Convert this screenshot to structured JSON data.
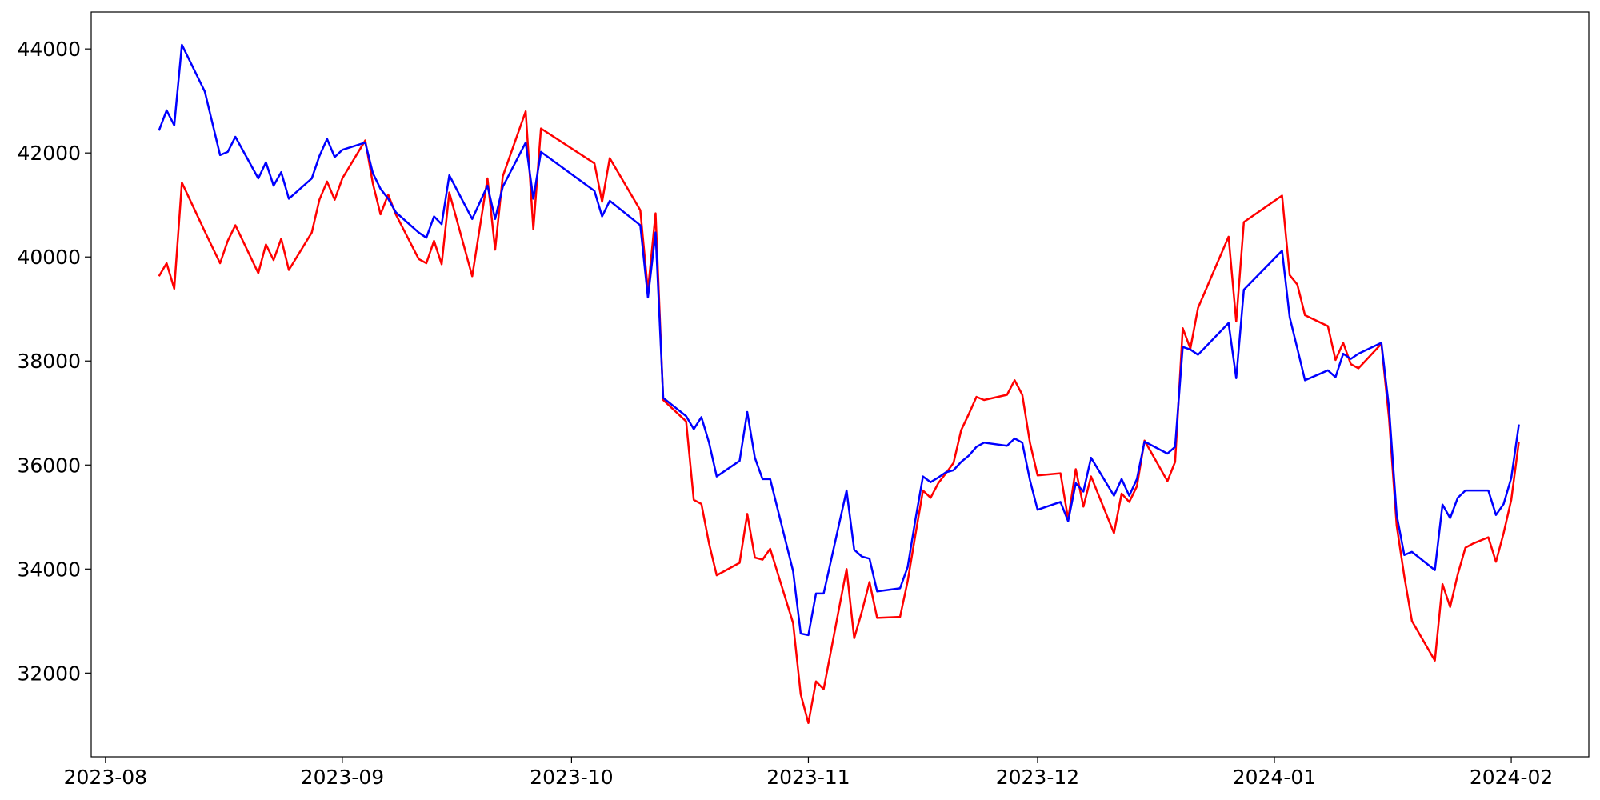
{
  "chart_data": {
    "type": "line",
    "x": [
      19577,
      19578,
      19579,
      19580,
      19583,
      19585,
      19586,
      19587,
      19590,
      19591,
      19592,
      19593,
      19594,
      19597,
      19598,
      19599,
      19600,
      19601,
      19604,
      19605,
      19606,
      19607,
      19608,
      19611,
      19612,
      19613,
      19614,
      19615,
      19618,
      19620,
      19621,
      19622,
      19625,
      19626,
      19627,
      19634,
      19635,
      19636,
      19640,
      19641,
      19642,
      19643,
      19646,
      19647,
      19648,
      19649,
      19650,
      19653,
      19654,
      19655,
      19656,
      19657,
      19660,
      19661,
      19662,
      19663,
      19664,
      19667,
      19668,
      19669,
      19670,
      19671,
      19674,
      19675,
      19676,
      19677,
      19678,
      19679,
      19680,
      19681,
      19682,
      19683,
      19684,
      19685,
      19688,
      19689,
      19690,
      19691,
      19692,
      19695,
      19696,
      19697,
      19698,
      19699,
      19702,
      19703,
      19704,
      19705,
      19706,
      19709,
      19710,
      19711,
      19712,
      19713,
      19717,
      19718,
      19719,
      19724,
      19725,
      19726,
      19727,
      19730,
      19731,
      19732,
      19733,
      19734,
      19737,
      19738,
      19739,
      19740,
      19741,
      19744,
      19745,
      19746,
      19747,
      19748,
      19749,
      19751,
      19752,
      19753,
      19754,
      19755
    ],
    "series": [
      {
        "color": "#ff0000",
        "values": [
          39630,
          39880,
          39390,
          41430,
          40490,
          39880,
          40310,
          40610,
          39690,
          40240,
          39940,
          40350,
          39750,
          40470,
          41100,
          41450,
          41100,
          41510,
          42240,
          41410,
          40820,
          41200,
          40820,
          39960,
          39880,
          40310,
          39860,
          41240,
          39630,
          41510,
          40140,
          41550,
          42800,
          40530,
          42470,
          41800,
          41060,
          41900,
          40900,
          39350,
          40840,
          37250,
          36840,
          35330,
          35250,
          34490,
          33880,
          34120,
          35060,
          34220,
          34180,
          34390,
          32960,
          31590,
          31040,
          31840,
          31690,
          34000,
          32670,
          33180,
          33750,
          33060,
          33080,
          33770,
          34650,
          35510,
          35370,
          35650,
          35840,
          36040,
          36670,
          36980,
          37310,
          37250,
          37350,
          37630,
          37350,
          36430,
          35800,
          35840,
          34960,
          35920,
          35200,
          35780,
          34690,
          35450,
          35290,
          35590,
          36470,
          35690,
          36060,
          38630,
          38240,
          39020,
          40390,
          38760,
          40670,
          41180,
          39650,
          39470,
          38880,
          38670,
          38020,
          38350,
          37940,
          37860,
          38330,
          36900,
          34840,
          33860,
          33000,
          32240,
          33710,
          33270,
          33900,
          34410,
          34490,
          34610,
          34140,
          34690,
          35330,
          36450
        ]
      },
      {
        "color": "#0000ff",
        "values": [
          42430,
          42820,
          42530,
          44080,
          43180,
          41960,
          42020,
          42310,
          41510,
          41820,
          41370,
          41630,
          41120,
          41510,
          41940,
          42270,
          41920,
          42060,
          42200,
          41610,
          41310,
          41120,
          40860,
          40470,
          40370,
          40780,
          40630,
          41570,
          40730,
          41370,
          40730,
          41350,
          42200,
          41120,
          42020,
          41270,
          40780,
          41080,
          40610,
          39220,
          40470,
          37290,
          36940,
          36690,
          36920,
          36430,
          35780,
          36080,
          37020,
          36140,
          35730,
          35730,
          33960,
          32760,
          32730,
          33530,
          33530,
          35510,
          34370,
          34240,
          34200,
          33570,
          33630,
          34040,
          34940,
          35780,
          35670,
          35760,
          35860,
          35900,
          36060,
          36180,
          36350,
          36430,
          36370,
          36510,
          36430,
          35710,
          35140,
          35290,
          34920,
          35650,
          35490,
          36140,
          35410,
          35730,
          35410,
          35730,
          36450,
          36220,
          36350,
          38270,
          38220,
          38120,
          38730,
          37670,
          39370,
          40120,
          38840,
          38240,
          37630,
          37820,
          37690,
          38140,
          38040,
          38140,
          38350,
          37100,
          35040,
          34270,
          34330,
          33980,
          35240,
          34980,
          35370,
          35510,
          35510,
          35510,
          35040,
          35250,
          35750,
          36780
        ]
      }
    ],
    "xlim": [
      19568.13,
      19764.15
    ],
    "xticks": [
      {
        "value": 19570,
        "label": "2023-08"
      },
      {
        "value": 19601,
        "label": "2023-09"
      },
      {
        "value": 19631,
        "label": "2023-10"
      },
      {
        "value": 19662,
        "label": "2023-11"
      },
      {
        "value": 19692,
        "label": "2023-12"
      },
      {
        "value": 19723,
        "label": "2024-01"
      },
      {
        "value": 19754,
        "label": "2024-02"
      }
    ],
    "ylim": [
      30390,
      44710
    ],
    "yticks": [
      32000,
      34000,
      36000,
      38000,
      40000,
      42000,
      44000
    ],
    "grid": false
  }
}
